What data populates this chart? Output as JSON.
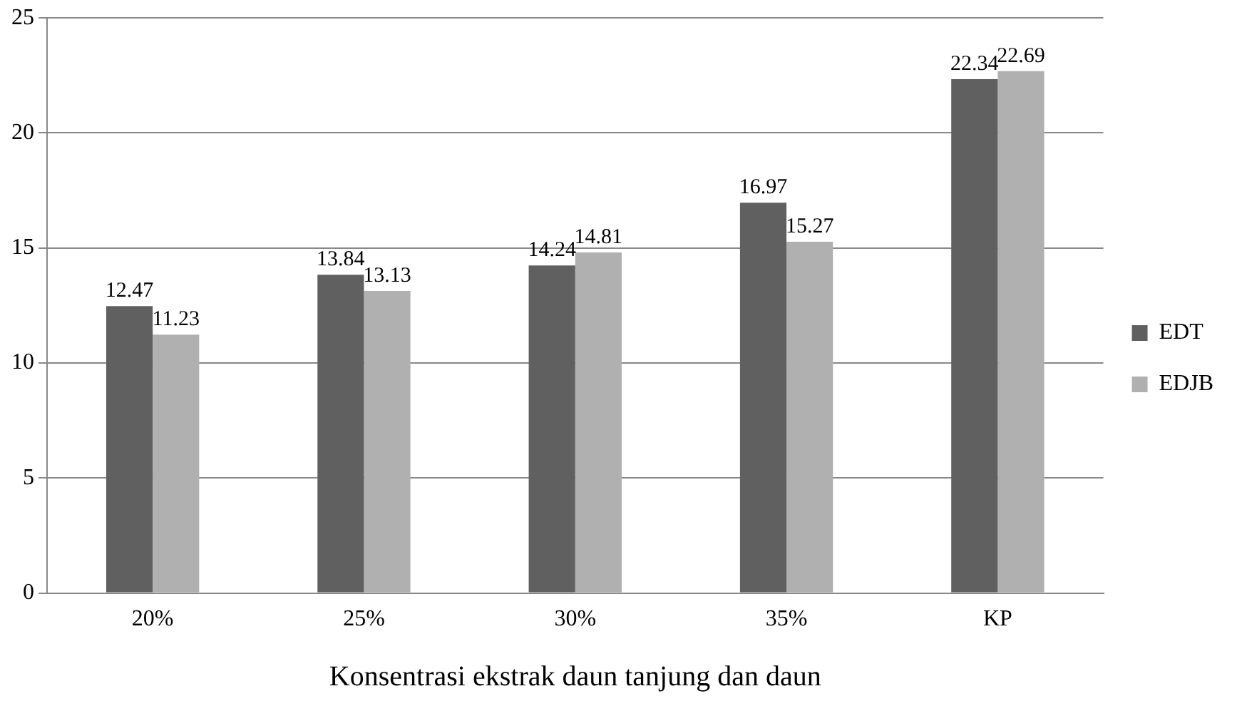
{
  "chart_data": {
    "type": "bar",
    "xlabel": "Konsentrasi ekstrak daun tanjung dan daun",
    "categories": [
      "20%",
      "25%",
      "30%",
      "35%",
      "KP"
    ],
    "series": [
      {
        "name": "EDT",
        "color": "#606060",
        "values": [
          12.47,
          13.84,
          14.24,
          16.97,
          22.34
        ]
      },
      {
        "name": "EDJB",
        "color": "#b0b0b0",
        "values": [
          11.23,
          13.13,
          14.81,
          15.27,
          22.69
        ]
      }
    ],
    "ylim": [
      0,
      25
    ],
    "yticks": [
      0,
      5,
      10,
      15,
      20,
      25
    ],
    "grid": "y",
    "legend": "right",
    "data_labels": true
  }
}
